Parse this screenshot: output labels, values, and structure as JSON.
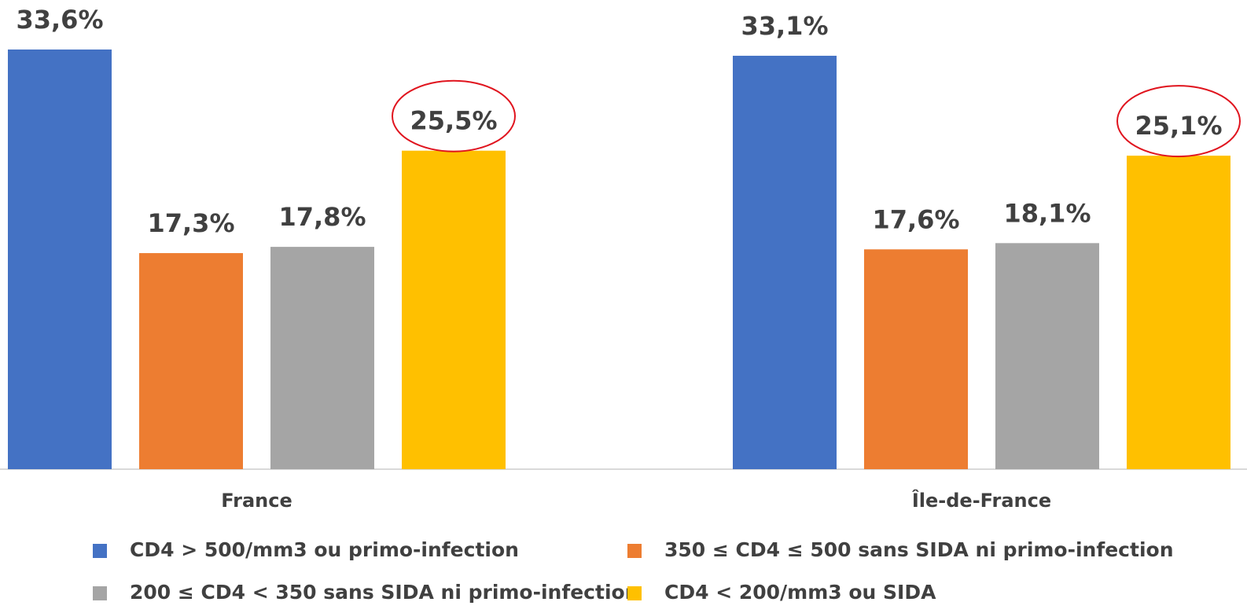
{
  "chart_data": {
    "type": "bar",
    "categories": [
      "France",
      "Île-de-France"
    ],
    "series": [
      {
        "name": "CD4 > 500/mm3 ou primo-infection",
        "color": "#4472c4",
        "values": [
          33.6,
          33.1
        ],
        "value_labels": [
          "33,6%",
          "33,1%"
        ]
      },
      {
        "name": "350 ≤ CD4 ≤ 500 sans SIDA ni primo-infection",
        "color": "#ed7d31",
        "values": [
          17.3,
          17.6
        ],
        "value_labels": [
          "17,3%",
          "17,6%"
        ]
      },
      {
        "name": "200 ≤ CD4 < 350 sans SIDA ni primo-infection",
        "color": "#a5a5a5",
        "values": [
          17.8,
          18.1
        ],
        "value_labels": [
          "17,8%",
          "18,1%"
        ]
      },
      {
        "name": "CD4 < 200/mm3 ou SIDA",
        "color": "#ffc000",
        "values": [
          25.5,
          25.1
        ],
        "value_labels": [
          "25,5%",
          "25,1%"
        ]
      }
    ]
  }
}
